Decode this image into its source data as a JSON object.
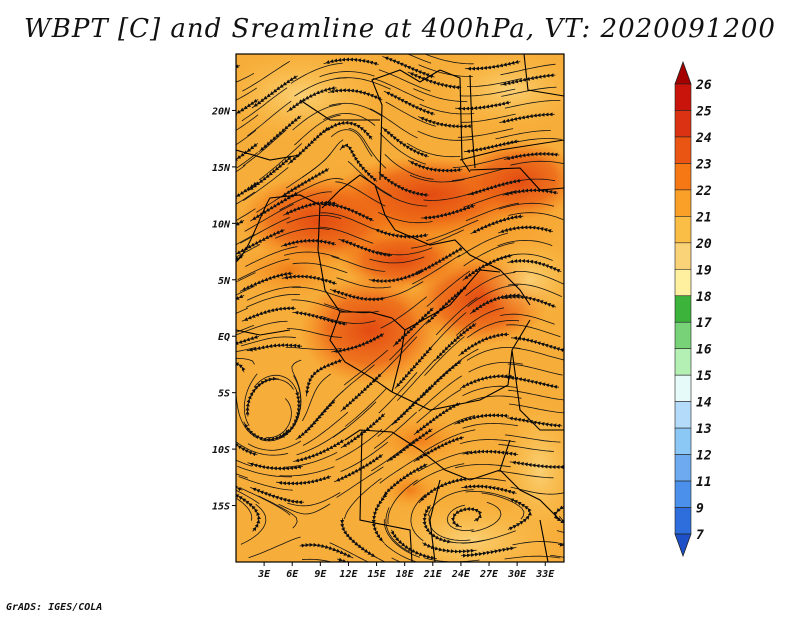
{
  "title": "WBPT [C] and Sreamline at 400hPa, VT: 2020091200",
  "credit": "GrADS: IGES/COLA",
  "map": {
    "lat_labels": [
      "20N",
      "15N",
      "10N",
      "5N",
      "EQ",
      "5S",
      "10S",
      "15S"
    ],
    "lon_labels": [
      "3E",
      "6E",
      "9E",
      "12E",
      "15E",
      "18E",
      "21E",
      "24E",
      "27E",
      "30E",
      "33E"
    ],
    "lon_range": [
      0,
      35
    ],
    "lat_range": [
      -20,
      25
    ]
  },
  "colorbar": {
    "levels": [
      "26",
      "25",
      "24",
      "23",
      "22",
      "21",
      "20",
      "19",
      "18",
      "17",
      "16",
      "15",
      "14",
      "13",
      "12",
      "11",
      "9",
      "7"
    ],
    "colors": [
      "#a50000",
      "#c8140a",
      "#dc3214",
      "#eb5514",
      "#f57814",
      "#faa028",
      "#fabe46",
      "#fad278",
      "#fff0a0",
      "#3cb43c",
      "#78d278",
      "#b4f0b4",
      "#e6fafa",
      "#b4dcfa",
      "#8cc8f5",
      "#6eaaf0",
      "#4b91eb",
      "#2d6edc",
      "#1e50c8"
    ]
  }
}
